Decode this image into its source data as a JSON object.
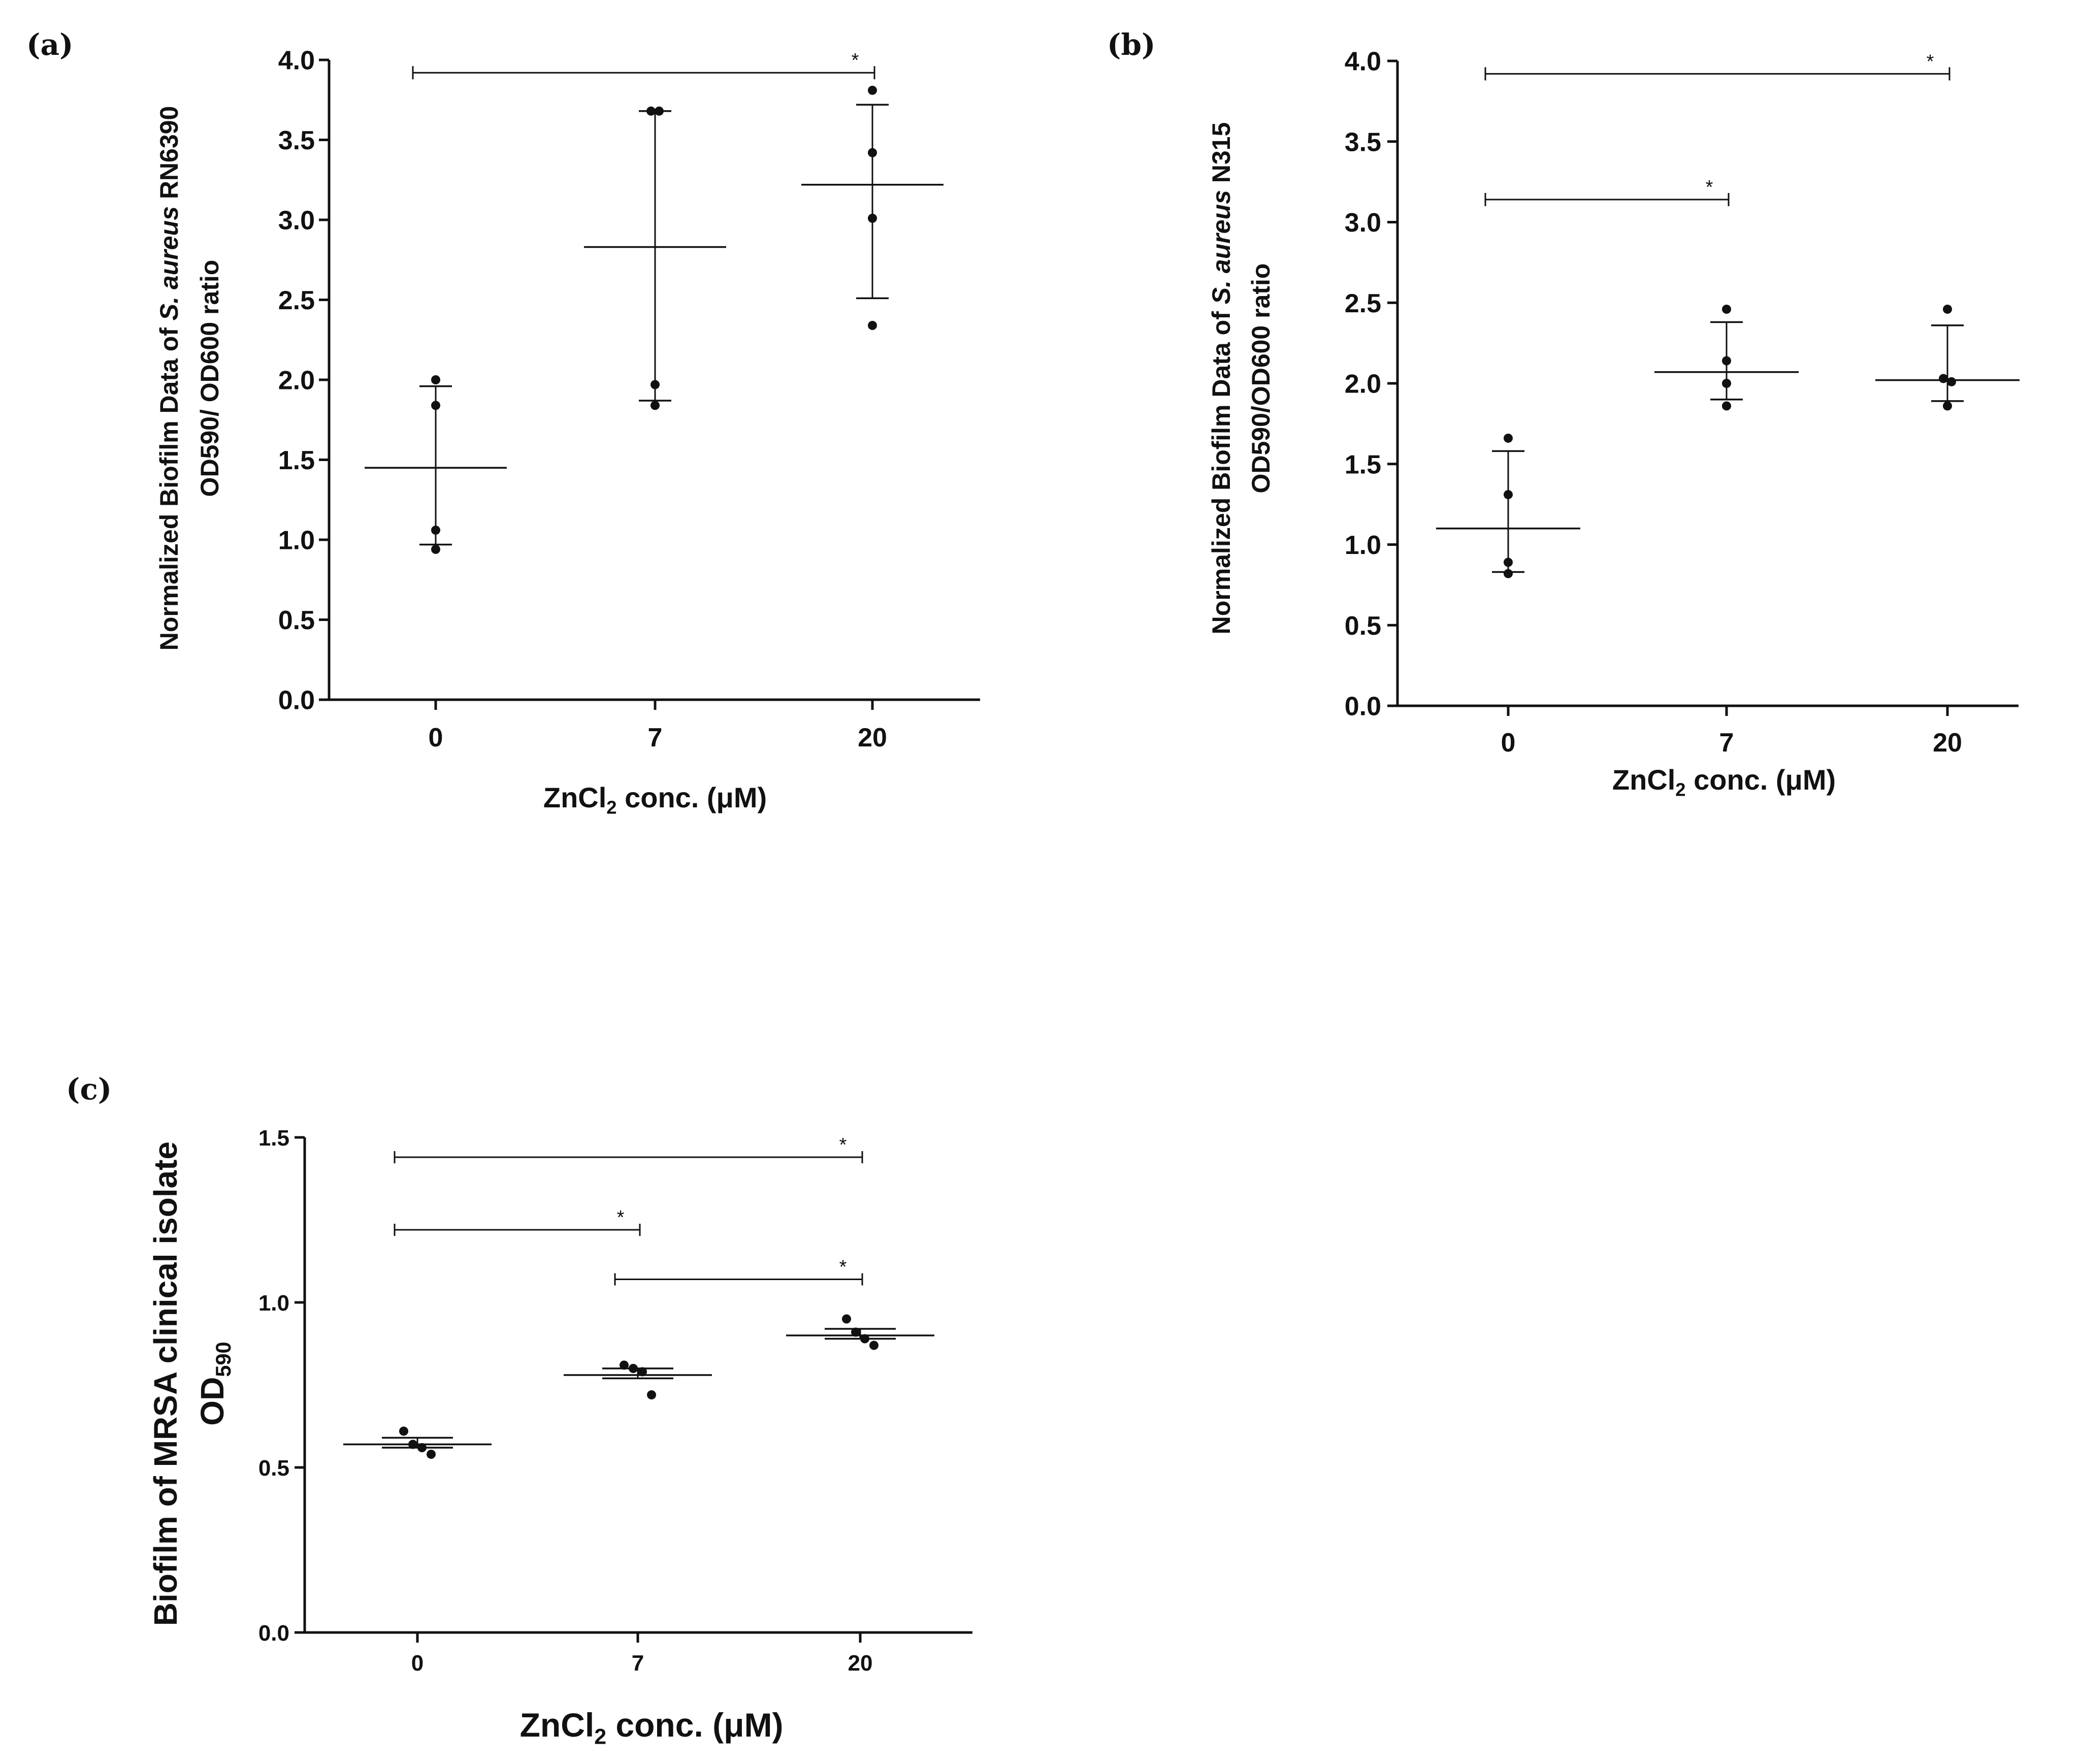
{
  "chart_data": [
    {
      "panel": "(a)",
      "type": "scatter",
      "categories": [
        "0",
        "7",
        "20"
      ],
      "ylim": [
        0,
        4.0
      ],
      "yticks": [
        "0.0",
        "0.5",
        "1.0",
        "1.5",
        "2.0",
        "2.5",
        "3.0",
        "3.5",
        "4.0"
      ],
      "xlabel_main": "ZnCl",
      "xlabel_sub": "2",
      "xlabel_rest": " conc. (μM)",
      "ylabel_line1_prefix": "Normalized Biofilm Data of ",
      "ylabel_line1_italic": "S. aureus",
      "ylabel_line1_suffix": " RN6390",
      "ylabel_line2": "OD590/ OD600 ratio",
      "groups": [
        {
          "category": "0",
          "points": [
            2.0,
            1.84,
            1.06,
            0.94
          ],
          "mean": 1.45,
          "sd_low": 0.97,
          "sd_high": 1.96
        },
        {
          "category": "7",
          "points": [
            3.68,
            3.68,
            1.97,
            1.84
          ],
          "mean": 2.83,
          "sd_low": 1.87,
          "sd_high": 3.68
        },
        {
          "category": "20",
          "points": [
            3.81,
            3.42,
            3.01,
            2.34
          ],
          "mean": 3.22,
          "sd_low": 2.51,
          "sd_high": 3.72
        }
      ],
      "significance": [
        {
          "from": "0",
          "to": "20",
          "y": 3.92,
          "label": "*"
        }
      ]
    },
    {
      "panel": "(b)",
      "type": "scatter",
      "categories": [
        "0",
        "7",
        "20"
      ],
      "ylim": [
        0,
        4.0
      ],
      "yticks": [
        "0.0",
        "0.5",
        "1.0",
        "1.5",
        "2.0",
        "2.5",
        "3.0",
        "3.5",
        "4.0"
      ],
      "xlabel_main": "ZnCl",
      "xlabel_sub": "2",
      "xlabel_rest": " conc. (μM)",
      "ylabel_line1_prefix": "Normalized Biofilm Data of ",
      "ylabel_line1_italic": "S. aureus",
      "ylabel_line1_suffix": " N315",
      "ylabel_line2": "OD590/OD600 ratio",
      "groups": [
        {
          "category": "0",
          "points": [
            1.66,
            1.31,
            0.89,
            0.82
          ],
          "mean": 1.1,
          "sd_low": 0.83,
          "sd_high": 1.58
        },
        {
          "category": "7",
          "points": [
            2.46,
            2.14,
            2.0,
            1.86
          ],
          "mean": 2.07,
          "sd_low": 1.9,
          "sd_high": 2.38
        },
        {
          "category": "20",
          "points": [
            2.46,
            2.03,
            2.01,
            1.86
          ],
          "mean": 2.02,
          "sd_low": 1.89,
          "sd_high": 2.36
        }
      ],
      "significance": [
        {
          "from": "0",
          "to": "20",
          "y": 3.92,
          "label": "*"
        },
        {
          "from": "0",
          "to": "7",
          "y": 3.14,
          "label": "*"
        }
      ]
    },
    {
      "panel": "(c)",
      "type": "scatter",
      "categories": [
        "0",
        "7",
        "20"
      ],
      "ylim": [
        0,
        1.5
      ],
      "yticks": [
        "0.0",
        "0.5",
        "1.0",
        "1.5"
      ],
      "xlabel_main": "ZnCl",
      "xlabel_sub": "2",
      "xlabel_rest": " conc. (μM)",
      "ylabel_line1": "Biofilm of MRSA clinical isolate",
      "ylabel_line2_main": "OD",
      "ylabel_line2_sub": "590",
      "groups": [
        {
          "category": "0",
          "points": [
            0.61,
            0.57,
            0.56,
            0.54
          ],
          "mean": 0.57,
          "sd_low": 0.56,
          "sd_high": 0.59
        },
        {
          "category": "7",
          "points": [
            0.81,
            0.8,
            0.79,
            0.72
          ],
          "mean": 0.78,
          "sd_low": 0.77,
          "sd_high": 0.8
        },
        {
          "category": "20",
          "points": [
            0.95,
            0.91,
            0.89,
            0.87
          ],
          "mean": 0.9,
          "sd_low": 0.89,
          "sd_high": 0.92
        }
      ],
      "significance": [
        {
          "from": "0",
          "to": "20",
          "y": 1.44,
          "label": "*"
        },
        {
          "from": "0",
          "to": "7",
          "y": 1.22,
          "label": "*"
        },
        {
          "from": "7",
          "to": "20",
          "y": 1.07,
          "label": "*"
        }
      ]
    }
  ]
}
